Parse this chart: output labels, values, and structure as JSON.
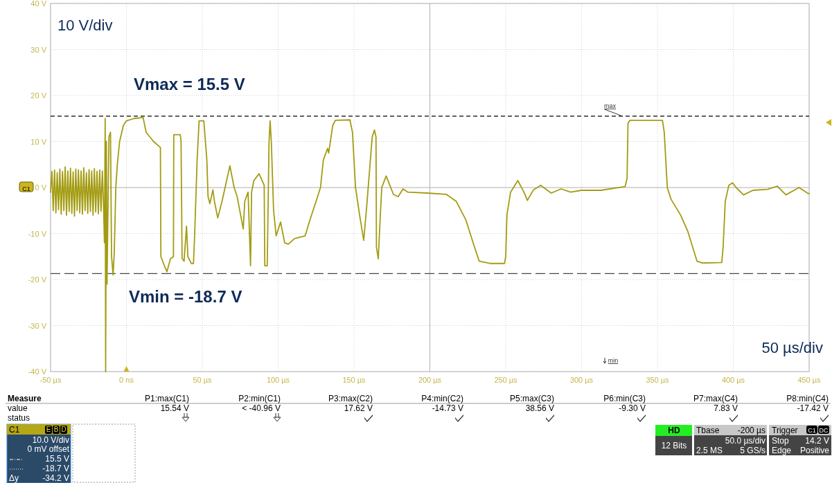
{
  "chart_data": {
    "type": "line",
    "xlim": [
      -50,
      450
    ],
    "ylim": [
      -40,
      40
    ],
    "xticks": [
      {
        "value": -50,
        "label": "-50 µs"
      },
      {
        "value": 0,
        "label": "0 ns"
      },
      {
        "value": 50,
        "label": "50 µs"
      },
      {
        "value": 100,
        "label": "100 µs"
      },
      {
        "value": 150,
        "label": "150 µs"
      },
      {
        "value": 200,
        "label": "200 µs"
      },
      {
        "value": 250,
        "label": "250 µs"
      },
      {
        "value": 300,
        "label": "300 µs"
      },
      {
        "value": 350,
        "label": "350 µs"
      },
      {
        "value": 400,
        "label": "400 µs"
      },
      {
        "value": 450,
        "label": "450 µs"
      }
    ],
    "yticks": [
      {
        "value": -40,
        "label": "-40 V"
      },
      {
        "value": -30,
        "label": "-30 V"
      },
      {
        "value": -20,
        "label": "-20 V"
      },
      {
        "value": -10,
        "label": "-10 V"
      },
      {
        "value": 0,
        "label": "0 V"
      },
      {
        "value": 10,
        "label": "10 V"
      },
      {
        "value": 20,
        "label": "20 V"
      },
      {
        "value": 30,
        "label": "30 V"
      },
      {
        "value": 40,
        "label": "40 V"
      }
    ],
    "grid": true,
    "series": [
      {
        "color": "#a39c12",
        "x": [
          -50,
          -49.125,
          -48.25,
          -47.375,
          -46.5,
          -45.625,
          -44.75,
          -43.875,
          -43,
          -42.125,
          -41.25,
          -40.375,
          -39.5,
          -38.625,
          -37.75,
          -36.875,
          -36,
          -35.125,
          -34.25,
          -33.375,
          -32.5,
          -31.625,
          -30.75,
          -29.875,
          -29,
          -28.125,
          -27.25,
          -26.375,
          -25.5,
          -24.625,
          -23.75,
          -22.875,
          -22,
          -21.125,
          -20.25,
          -19.375,
          -18.5,
          -17.625,
          -16.75,
          -15.875,
          -15,
          -14.5,
          -14,
          -13.7,
          -13.2,
          -12.8,
          -12.3,
          -11.5,
          -10.5,
          -9.8,
          -8.8,
          -8,
          -7,
          -6,
          -4.5,
          -2,
          0,
          5,
          11,
          13,
          17.9,
          22.4,
          22.7,
          25,
          26.7,
          29,
          31,
          31.2,
          35.5,
          36,
          36.7,
          38,
          39.6,
          40.5,
          42.7,
          44.2,
          45,
          46.6,
          47.9,
          51,
          53,
          53.8,
          55,
          57,
          58,
          60.2,
          63,
          68.2,
          71,
          73,
          77,
          78,
          80.2,
          81.8,
          82.5,
          84,
          87.4,
          90.8,
          91.2,
          92.8,
          94,
          94.7,
          95.5,
          97,
          98.7,
          101.6,
          104.3,
          106.7,
          110.7,
          117.8,
          121,
          125,
          127.9,
          129.8,
          132.6,
          133.3,
          136,
          137.7,
          147.3,
          149,
          151,
          153.7,
          156.4,
          158.4,
          162,
          163.5,
          164.5,
          164.8,
          166,
          167.2,
          168.3,
          171.2,
          176,
          179.1,
          182.3,
          185.5,
          198.2,
          211,
          217.4,
          223.7,
          228.5,
          232.5,
          239.6,
          249.2,
          250,
          250.8,
          253.2,
          258,
          262,
          264.3,
          268.3,
          272.3,
          273,
          280,
          286.5,
          292.8,
          300,
          312.7,
          328.7,
          330,
          330.6,
          331.8,
          353.3,
          354.5,
          356.5,
          358.9,
          365.3,
          370,
          376.1,
          379.6,
          392.4,
          393.3,
          394.7,
          397.1,
          399.5,
          401.9,
          406.7,
          413,
          422.6,
          429,
          434.7,
          443.3,
          449.4,
          450
        ],
        "values": [
          -1,
          3.5,
          -5,
          3.8,
          -5.5,
          3.2,
          -4.8,
          4,
          -5.8,
          3.5,
          -5,
          4.5,
          -6,
          3.6,
          -5.2,
          4.2,
          -5.6,
          3.4,
          -6.2,
          4,
          -5,
          3.8,
          -5.5,
          3.6,
          -5.8,
          4.3,
          -5,
          3.2,
          -5.6,
          3.9,
          -5.2,
          3.6,
          -6,
          4.1,
          -5.3,
          3.5,
          -5.7,
          3.8,
          -5.1,
          3.6,
          -5,
          -12,
          15,
          -40,
          10,
          -21,
          -8,
          11,
          12,
          -15,
          -19,
          -14,
          0,
          5,
          10,
          13.5,
          14.5,
          15,
          15.2,
          12,
          10,
          8.7,
          -15,
          -17,
          -18.3,
          -15.5,
          -15,
          11.5,
          11.5,
          10,
          -15.4,
          -16,
          -8.4,
          -15,
          -16.5,
          -16.5,
          -10,
          6,
          14.5,
          14.5,
          6,
          -2,
          -3.5,
          -0.5,
          -3,
          -6.6,
          -3,
          4.7,
          0,
          -2,
          -9,
          -3,
          -1,
          -17,
          -1,
          1.5,
          3,
          0.5,
          -17,
          -17,
          10,
          14.5,
          10,
          -5,
          -10.5,
          -7.5,
          -12,
          -12.3,
          -11.1,
          -10.5,
          -7,
          -3,
          0,
          6,
          8.5,
          7.5,
          13.5,
          14.6,
          14.7,
          12,
          0,
          -6,
          -11.5,
          -4,
          11,
          12.5,
          11,
          -13,
          -15.5,
          -7,
          0,
          2.5,
          -1.5,
          -2,
          -0.3,
          -1,
          -1.2,
          -1.5,
          -3,
          -7,
          -12,
          -16,
          -16.5,
          -16.5,
          -15,
          -6,
          -1,
          1.5,
          -1,
          -2.8,
          -0.5,
          0.3,
          0.5,
          -1.2,
          -0.3,
          -1,
          -0.6,
          -0.6,
          0.2,
          2,
          14,
          14.6,
          14.6,
          12,
          0,
          -2.5,
          -6,
          -9.5,
          -16,
          -16.4,
          -16.3,
          -13,
          -3,
          0.5,
          1,
          0,
          -1.6,
          -0.6,
          -0.4,
          0.3,
          -1.6,
          0,
          -1.3,
          -1.3
        ]
      }
    ],
    "ref_lines": [
      {
        "axis": "y",
        "value": 15.5,
        "label": "Vmax = 15.5 V",
        "color": "#000000",
        "line_style": "dashed"
      },
      {
        "axis": "y",
        "value": -18.7,
        "label": "Vmin = -18.7 V",
        "color": "#444444",
        "line_style": "dashed"
      }
    ],
    "annotations": [
      "10 V/div",
      "50 µs/div",
      {
        "text": "max",
        "x": 327,
        "y": 15.5
      },
      "min",
      "C1",
      "Measure",
      "value",
      "status",
      "P1:max(C1)",
      "P2:min(C1)",
      "P3:max(C2)",
      "P4:min(C2)",
      "P5:max(C3)",
      "P6:min(C3)",
      "P7:max(C4)",
      "P8:min(C4)",
      "15.54 V",
      "< -40.96 V",
      "17.62 V",
      "-14.73 V",
      "38.56 V",
      "-9.30 V",
      "7.83 V",
      "-17.42 V",
      "C1",
      "E",
      "B",
      "D",
      "10.0 V/div",
      "0 mV offset",
      "15.5 V",
      "-18.7 V",
      "Δy",
      "-34.2 V",
      "HD",
      "12 Bits",
      "Tbase",
      "-200 µs",
      "50.0 µs/div",
      "2.5 MS",
      "5 GS/s",
      "Trigger",
      "C1",
      "DC",
      "Stop",
      "14.2 V",
      "Edge",
      "Positive"
    ]
  }
}
